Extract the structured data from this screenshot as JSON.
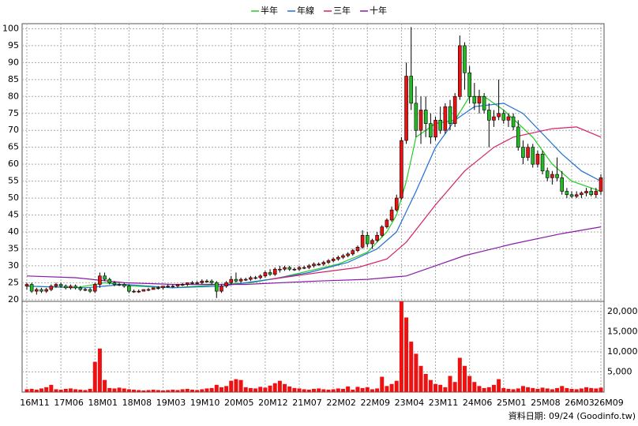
{
  "chart_data": {
    "type": "candlestick",
    "categories": [
      "16M11",
      null,
      null,
      null,
      null,
      null,
      null,
      "17M06",
      null,
      null,
      null,
      null,
      null,
      null,
      "18M01",
      null,
      null,
      null,
      null,
      null,
      null,
      "18M08",
      null,
      null,
      null,
      null,
      null,
      null,
      "19M03",
      null,
      null,
      null,
      null,
      null,
      null,
      "19M10",
      null,
      null,
      null,
      null,
      null,
      null,
      "20M05",
      null,
      null,
      null,
      null,
      null,
      null,
      "20M12",
      null,
      null,
      null,
      null,
      null,
      null,
      "21M07",
      null,
      null,
      null,
      null,
      null,
      null,
      "22M02",
      null,
      null,
      null,
      null,
      null,
      null,
      "22M09",
      null,
      null,
      null,
      null,
      null,
      null,
      "23M04",
      null,
      null,
      null,
      null,
      null,
      null,
      "23M11",
      null,
      null,
      null,
      null,
      null,
      null,
      "24M06",
      null,
      null,
      null,
      null,
      null,
      null,
      "25M01",
      null,
      null,
      null,
      null,
      null,
      null,
      "25M08",
      null,
      null,
      null,
      null,
      null,
      null,
      "26M03",
      null,
      null,
      null,
      null,
      null,
      "26M09"
    ],
    "ohlc": [
      [
        24,
        25,
        23,
        24.5
      ],
      [
        24.5,
        25,
        22,
        22.5
      ],
      [
        22.5,
        23.5,
        21.5,
        23
      ],
      [
        23,
        23.5,
        22,
        22.5
      ],
      [
        22.5,
        23.5,
        22,
        23
      ],
      [
        23,
        24.5,
        22.5,
        24
      ],
      [
        24,
        25,
        23.5,
        24.5
      ],
      [
        24.5,
        25,
        23.5,
        24
      ],
      [
        24,
        24.5,
        23,
        23.5
      ],
      [
        23.5,
        24.5,
        23,
        24
      ],
      [
        24,
        24.5,
        23,
        23.5
      ],
      [
        23.5,
        24,
        22.5,
        23
      ],
      [
        23,
        23.5,
        22.5,
        23
      ],
      [
        23,
        23.5,
        22,
        22.5
      ],
      [
        22.5,
        25,
        22,
        24.5
      ],
      [
        24.5,
        28,
        23.5,
        27
      ],
      [
        27,
        28,
        25.5,
        26
      ],
      [
        26,
        26.5,
        24.5,
        25
      ],
      [
        25,
        25.5,
        24,
        24.5
      ],
      [
        24.5,
        25,
        24,
        24.5
      ],
      [
        24.5,
        25,
        23.5,
        24
      ],
      [
        24,
        24.5,
        22,
        22.5
      ],
      [
        22.5,
        23,
        22,
        22.5
      ],
      [
        22.5,
        23,
        22,
        22.5
      ],
      [
        22.5,
        23,
        22.5,
        23
      ],
      [
        23,
        23.5,
        22.5,
        23
      ],
      [
        23,
        23.5,
        23,
        23.5
      ],
      [
        23.5,
        24,
        23,
        23.5
      ],
      [
        23.5,
        24,
        23,
        24
      ],
      [
        24,
        24.5,
        23.5,
        24
      ],
      [
        24,
        24.5,
        23.5,
        24
      ],
      [
        24,
        24.5,
        23.5,
        24.5
      ],
      [
        24.5,
        25,
        24,
        24.5
      ],
      [
        24.5,
        25,
        24,
        25
      ],
      [
        25,
        25.5,
        24.5,
        25
      ],
      [
        25,
        25.5,
        24.5,
        25
      ],
      [
        25,
        26,
        24.5,
        25.5
      ],
      [
        25.5,
        26,
        25,
        25.5
      ],
      [
        25.5,
        26,
        24.5,
        25
      ],
      [
        25,
        25.5,
        20.5,
        22.5
      ],
      [
        22.5,
        24.5,
        22,
        24
      ],
      [
        24,
        25.5,
        23.5,
        25
      ],
      [
        25,
        27,
        24.5,
        26
      ],
      [
        26,
        28,
        25,
        25.5
      ],
      [
        25.5,
        26.5,
        25,
        26
      ],
      [
        26,
        26.5,
        25.5,
        26
      ],
      [
        26,
        27,
        25.5,
        26.5
      ],
      [
        26.5,
        27,
        26,
        26.5
      ],
      [
        26.5,
        27.5,
        26,
        27
      ],
      [
        27,
        28.5,
        26.5,
        28
      ],
      [
        28,
        29,
        27,
        27.5
      ],
      [
        27.5,
        29.5,
        27,
        29
      ],
      [
        29,
        30,
        28,
        29
      ],
      [
        29,
        30,
        28.5,
        29.5
      ],
      [
        29.5,
        30,
        28.5,
        29
      ],
      [
        29,
        29.5,
        28.5,
        29
      ],
      [
        29,
        30,
        28.5,
        29.5
      ],
      [
        29.5,
        30,
        29,
        29.5
      ],
      [
        29.5,
        30.5,
        29,
        30
      ],
      [
        30,
        31,
        29.5,
        30.5
      ],
      [
        30.5,
        31,
        30,
        30.5
      ],
      [
        30.5,
        31.5,
        30,
        31
      ],
      [
        31,
        32,
        30.5,
        31.5
      ],
      [
        31.5,
        32.5,
        31,
        32
      ],
      [
        32,
        33,
        31.5,
        32.5
      ],
      [
        32.5,
        33.5,
        32,
        33
      ],
      [
        33,
        34,
        32.5,
        33.5
      ],
      [
        33.5,
        35,
        33,
        34.5
      ],
      [
        34.5,
        36,
        34,
        35.5
      ],
      [
        35.5,
        40.5,
        35,
        39
      ],
      [
        39,
        40,
        35.5,
        36.5
      ],
      [
        36.5,
        38,
        35,
        37.5
      ],
      [
        37.5,
        40,
        37,
        39
      ],
      [
        39,
        42,
        38.5,
        41.5
      ],
      [
        41.5,
        44,
        41,
        43.5
      ],
      [
        43.5,
        47.5,
        43,
        46.5
      ],
      [
        46.5,
        51,
        46,
        50
      ],
      [
        50,
        68,
        49.5,
        67
      ],
      [
        67,
        90,
        66,
        86
      ],
      [
        86,
        100.5,
        76,
        78
      ],
      [
        78,
        83,
        68,
        70
      ],
      [
        70,
        80,
        66,
        76
      ],
      [
        76,
        80,
        68,
        72
      ],
      [
        72,
        75,
        66,
        68
      ],
      [
        68,
        74,
        67,
        73
      ],
      [
        73,
        77,
        69,
        70
      ],
      [
        70,
        78,
        69,
        77
      ],
      [
        77,
        79,
        70,
        72
      ],
      [
        72,
        81,
        71,
        80
      ],
      [
        80,
        98,
        79,
        95
      ],
      [
        95,
        96,
        82,
        87
      ],
      [
        87,
        89,
        78,
        80
      ],
      [
        80,
        84,
        76,
        78
      ],
      [
        78,
        82,
        75,
        80
      ],
      [
        80,
        81,
        75,
        76
      ],
      [
        76,
        78,
        65,
        73
      ],
      [
        73,
        76,
        71,
        74
      ],
      [
        74,
        85,
        73,
        75
      ],
      [
        75,
        76,
        72,
        73
      ],
      [
        73,
        75,
        71,
        74
      ],
      [
        74,
        75,
        70,
        71
      ],
      [
        71,
        73,
        64,
        65
      ],
      [
        65,
        67,
        60,
        62
      ],
      [
        62,
        66,
        61,
        65
      ],
      [
        65,
        66,
        59,
        60
      ],
      [
        60,
        64,
        59,
        63
      ],
      [
        63,
        64,
        57,
        58
      ],
      [
        58,
        59,
        55,
        56
      ],
      [
        56,
        58,
        54,
        57
      ],
      [
        57,
        62,
        55,
        56
      ],
      [
        56,
        58,
        51,
        52
      ],
      [
        52,
        53,
        50,
        51
      ],
      [
        51,
        52,
        50,
        50.5
      ],
      [
        50.5,
        52,
        50,
        51
      ],
      [
        51,
        52,
        50,
        51.5
      ],
      [
        51.5,
        53,
        50.5,
        52
      ],
      [
        52,
        53,
        50.5,
        51
      ],
      [
        51,
        53,
        50,
        52
      ],
      [
        52,
        57,
        51,
        56
      ]
    ],
    "up_color": "#ee1111",
    "down_color": "#22bb22",
    "ylim": [
      19.5,
      101.5
    ],
    "yticks": [
      20,
      25,
      30,
      35,
      40,
      45,
      50,
      55,
      60,
      65,
      70,
      75,
      80,
      85,
      90,
      95,
      100
    ],
    "grid": true,
    "lines": [
      {
        "name": "半年",
        "color": "#22cc22",
        "x": [
          0,
          10,
          16,
          22,
          30,
          40,
          46,
          52,
          58,
          64,
          70,
          74,
          76,
          78,
          80,
          84,
          88,
          91,
          94,
          98,
          104,
          108,
          112,
          116,
          118
        ],
        "values": [
          24,
          23.5,
          25,
          24,
          23.5,
          24.5,
          25,
          26.5,
          28.5,
          30.5,
          34,
          40,
          45,
          55,
          68,
          72,
          73,
          80,
          80,
          76,
          68,
          60,
          55,
          53,
          52
        ]
      },
      {
        "name": "年線",
        "color": "#1f6fd6",
        "x": [
          0,
          12,
          20,
          30,
          40,
          50,
          58,
          66,
          72,
          76,
          80,
          84,
          88,
          92,
          98,
          102,
          106,
          110,
          114,
          118
        ],
        "values": [
          24,
          23.5,
          24.5,
          23.5,
          24,
          26,
          28,
          31,
          35,
          40,
          52,
          65,
          73,
          77,
          78,
          75,
          69,
          63,
          58,
          55
        ]
      },
      {
        "name": "三年",
        "color": "#d6206a",
        "x": [
          50,
          60,
          68,
          74,
          78,
          84,
          90,
          96,
          100,
          108,
          113,
          118
        ],
        "values": [
          26,
          28,
          29.5,
          32,
          37,
          48,
          58,
          65,
          68,
          70.5,
          71,
          68
        ]
      },
      {
        "name": "十年",
        "color": "#8a1aa8",
        "x": [
          0,
          10,
          20,
          30,
          45,
          60,
          70,
          78,
          84,
          90,
          100,
          110,
          118
        ],
        "values": [
          27,
          26.5,
          25,
          24.5,
          24.5,
          25.5,
          26,
          27,
          30,
          33,
          36.5,
          39.5,
          41.5
        ]
      }
    ],
    "volume": {
      "color": "#ee1111",
      "ylim": [
        0,
        22500
      ],
      "yticks": [
        {
          "value": 5000,
          "label": "5,000"
        },
        {
          "value": 10000,
          "label": "10,000"
        },
        {
          "value": 15000,
          "label": "15,000"
        },
        {
          "value": 20000,
          "label": "20,000"
        }
      ],
      "values": [
        700,
        800,
        600,
        900,
        1200,
        1800,
        700,
        600,
        800,
        900,
        700,
        600,
        500,
        800,
        7500,
        10800,
        3000,
        1000,
        900,
        1100,
        900,
        700,
        600,
        500,
        400,
        500,
        600,
        500,
        400,
        500,
        600,
        500,
        700,
        800,
        600,
        500,
        700,
        900,
        1000,
        1800,
        1200,
        1500,
        2800,
        3200,
        3000,
        1200,
        1000,
        900,
        1300,
        1100,
        1600,
        2200,
        2800,
        2000,
        1400,
        1000,
        900,
        700,
        600,
        800,
        900,
        700,
        600,
        700,
        900,
        800,
        1400,
        600,
        1300,
        1000,
        1200,
        700,
        900,
        3800,
        1500,
        2000,
        2800,
        22500,
        18500,
        12500,
        9500,
        6500,
        4500,
        3000,
        2000,
        1800,
        1200,
        4000,
        2500,
        8500,
        6500,
        4000,
        2500,
        1500,
        1000,
        1200,
        1800,
        3200,
        1000,
        800,
        700,
        900,
        1500,
        1200,
        1000,
        800,
        1100,
        900,
        700,
        1000,
        1500,
        1000,
        800,
        700,
        900,
        1200,
        1000,
        900,
        1100
      ]
    },
    "footnote": "資料日期: 09/24 (Goodinfo.tw)"
  }
}
